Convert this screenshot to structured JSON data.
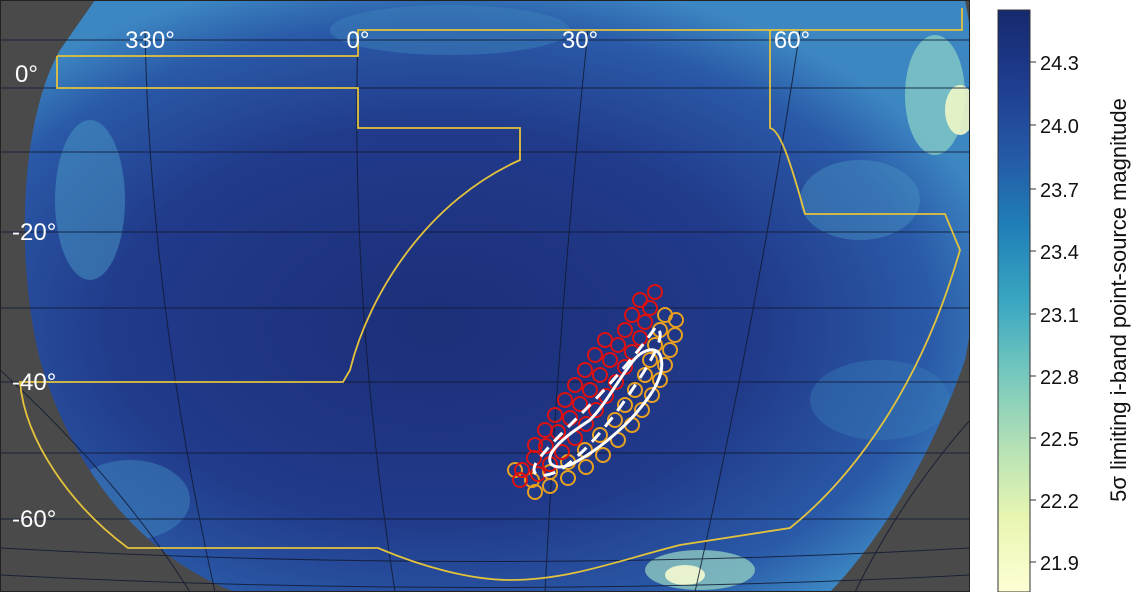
{
  "map": {
    "ra_labels": [
      "330°",
      "0°",
      "30°",
      "60°"
    ],
    "dec_labels": [
      "0°",
      "-20°",
      "-40°",
      "-60°"
    ]
  },
  "overlays": {
    "footprint_color": "#e3c23c",
    "tiling_colors": [
      "#dd1111",
      "#e8a020"
    ],
    "contour_color": "#ffffff",
    "contour_styles": [
      "solid",
      "dashed"
    ]
  },
  "colorbar": {
    "title": "5σ limiting i-band point-source magnitude",
    "ticks": [
      "24.3",
      "24.0",
      "23.7",
      "23.4",
      "23.1",
      "22.8",
      "22.5",
      "22.2",
      "21.9"
    ],
    "range": [
      21.8,
      24.5
    ],
    "colormap": [
      "#fefed4",
      "#e9f6b2",
      "#b4e1b5",
      "#75c8bd",
      "#3aa6c2",
      "#2080b8",
      "#2459a6",
      "#1f3c8f",
      "#16296e"
    ]
  }
}
